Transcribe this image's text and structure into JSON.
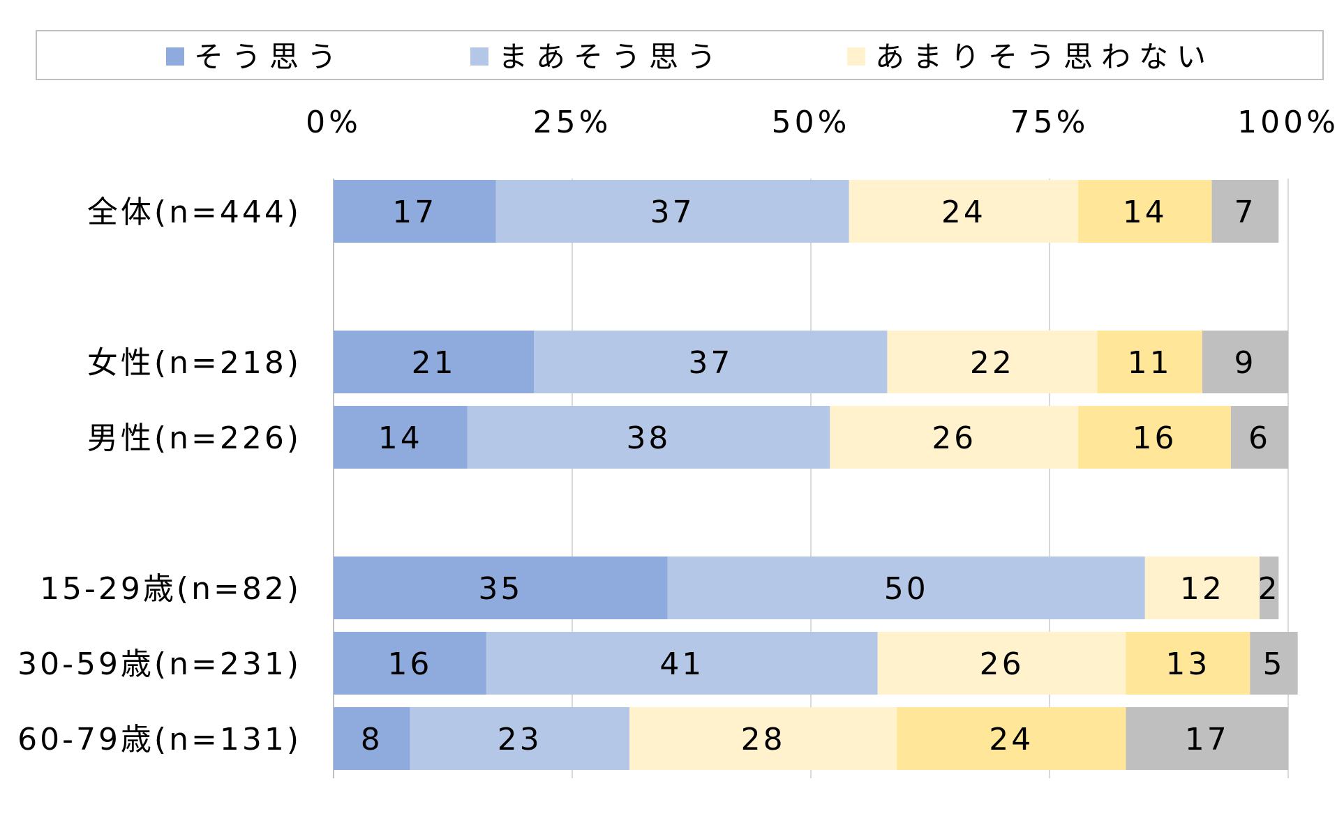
{
  "chart_data": {
    "type": "bar",
    "orientation": "horizontal",
    "stacked": true,
    "categories": [
      "全体(n=444)",
      "女性(n=218)",
      "男性(n=226)",
      "15-29歳(n=82)",
      "30-59歳(n=231)",
      "60-79歳(n=131)"
    ],
    "groups": [
      [
        0
      ],
      [
        1,
        2
      ],
      [
        3,
        4,
        5
      ]
    ],
    "series": [
      {
        "name": "そう思う",
        "color": "#8FAADC",
        "values": [
          17,
          21,
          14,
          35,
          16,
          8
        ]
      },
      {
        "name": "まあそう思う",
        "color": "#B4C7E7",
        "values": [
          37,
          37,
          38,
          50,
          41,
          23
        ]
      },
      {
        "name": "あまりそう思わない",
        "color": "#FFF2CC",
        "values": [
          24,
          22,
          26,
          12,
          26,
          28
        ]
      },
      {
        "name": "",
        "color": "#FFE699",
        "values": [
          14,
          11,
          16,
          0,
          13,
          24
        ]
      },
      {
        "name": "",
        "color": "#BFBFBF",
        "values": [
          7,
          9,
          6,
          2,
          5,
          17
        ]
      }
    ],
    "xlim": [
      0,
      100
    ],
    "xticks": [
      "0%",
      "25%",
      "50%",
      "75%",
      "100%"
    ],
    "grid": true,
    "legend_position": "top",
    "title": "",
    "xlabel": "",
    "ylabel": ""
  }
}
